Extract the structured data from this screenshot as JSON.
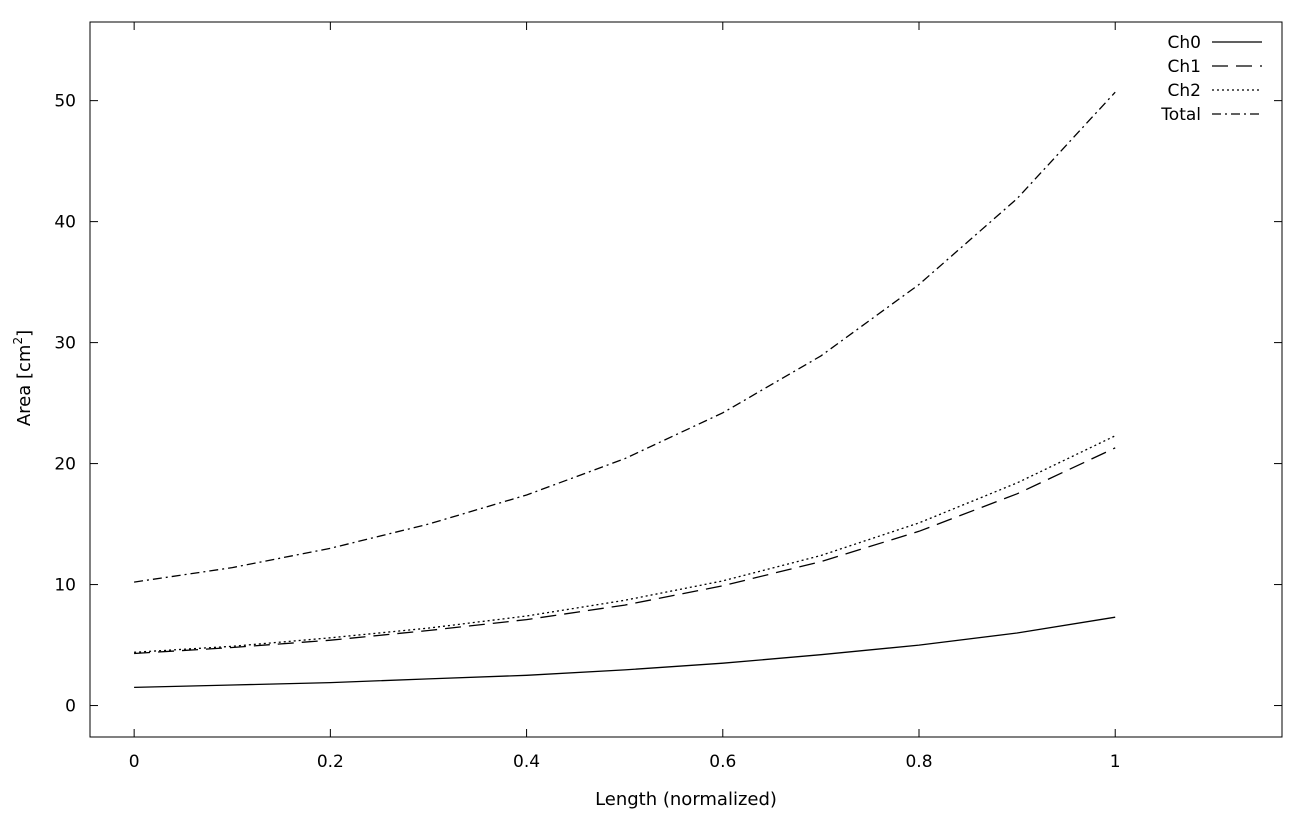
{
  "chart_data": {
    "type": "line",
    "title": "",
    "xlabel": "Length (normalized)",
    "ylabel_main": "Area [cm",
    "ylabel_sup": "2",
    "ylabel_end": "]",
    "xlim": [
      -0.045,
      1.17
    ],
    "ylim": [
      -2.6,
      56.5
    ],
    "x_ticks": [
      0,
      0.2,
      0.4,
      0.6,
      0.8,
      1
    ],
    "x_tick_labels": [
      "0",
      "0.2",
      "0.4",
      "0.6",
      "0.8",
      "1"
    ],
    "y_ticks": [
      0,
      10,
      20,
      30,
      40,
      50
    ],
    "y_tick_labels": [
      "0",
      "10",
      "20",
      "30",
      "40",
      "50"
    ],
    "grid": false,
    "legend_position": "top-right",
    "x": [
      0,
      0.1,
      0.2,
      0.3,
      0.4,
      0.5,
      0.6,
      0.7,
      0.8,
      0.9,
      1.0
    ],
    "series": [
      {
        "name": "Ch0",
        "dash": "solid",
        "values": [
          1.5,
          1.7,
          1.9,
          2.2,
          2.5,
          2.95,
          3.5,
          4.2,
          5.0,
          6.0,
          7.3
        ]
      },
      {
        "name": "Ch1",
        "dash": "long-dash",
        "values": [
          4.3,
          4.8,
          5.4,
          6.2,
          7.1,
          8.3,
          9.9,
          11.9,
          14.4,
          17.5,
          21.3
        ]
      },
      {
        "name": "Ch2",
        "dash": "dotted",
        "values": [
          4.4,
          4.9,
          5.6,
          6.4,
          7.4,
          8.7,
          10.3,
          12.4,
          15.1,
          18.4,
          22.3
        ]
      },
      {
        "name": "Total",
        "dash": "dash-dot",
        "values": [
          10.2,
          11.4,
          13.0,
          15.0,
          17.4,
          20.4,
          24.2,
          28.9,
          34.8,
          41.9,
          50.7
        ]
      }
    ]
  }
}
